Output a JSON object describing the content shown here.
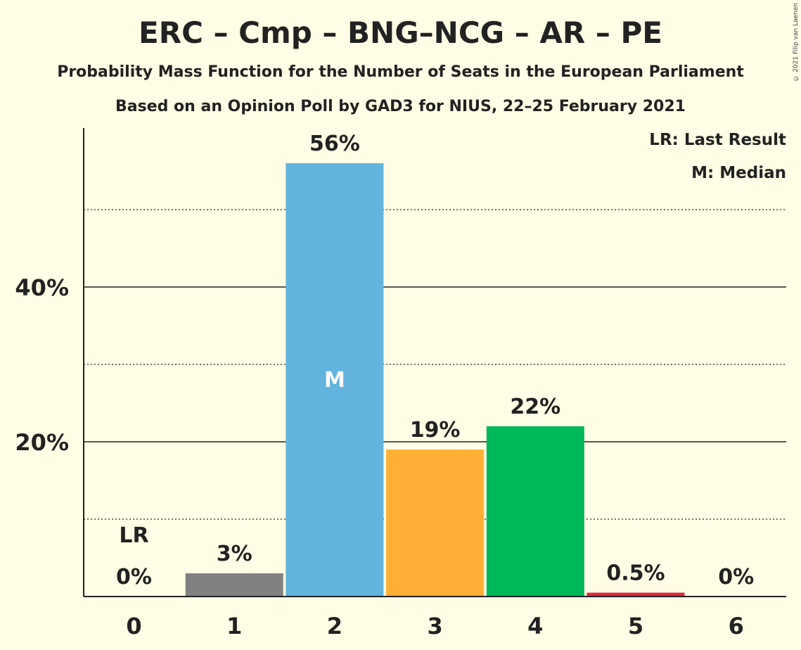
{
  "chart_data": {
    "type": "bar",
    "title": "ERC – Cmp – BNG–NCG – AR – PE",
    "subtitle": "Probability Mass Function for the Number of Seats in the European Parliament",
    "source": "Based on an Opinion Poll by GAD3 for NIUS, 22–25 February 2021",
    "copyright": "© 2021 Filip van Laenen",
    "xlabel": "",
    "ylabel": "",
    "categories": [
      "0",
      "1",
      "2",
      "3",
      "4",
      "5",
      "6"
    ],
    "values": [
      0,
      3,
      56,
      19,
      22,
      0.5,
      0
    ],
    "value_labels": [
      "0%",
      "3%",
      "56%",
      "19%",
      "22%",
      "0.5%",
      "0%"
    ],
    "bar_colors": [
      "#808080",
      "#808080",
      "#62B4DF",
      "#FFB034",
      "#00B85A",
      "#DB2B3D",
      "#808080"
    ],
    "ylim": [
      0,
      60
    ],
    "y_ticks": [
      20,
      40
    ],
    "y_tick_labels": [
      "20%",
      "40%"
    ],
    "minor_gridlines": [
      10,
      30,
      50
    ],
    "last_result_index": 0,
    "median_index": 2,
    "last_result_marker": "LR",
    "median_marker": "M",
    "legend": {
      "placement": "top-right",
      "entries": [
        "LR: Last Result",
        "M: Median"
      ]
    },
    "grid": true
  }
}
